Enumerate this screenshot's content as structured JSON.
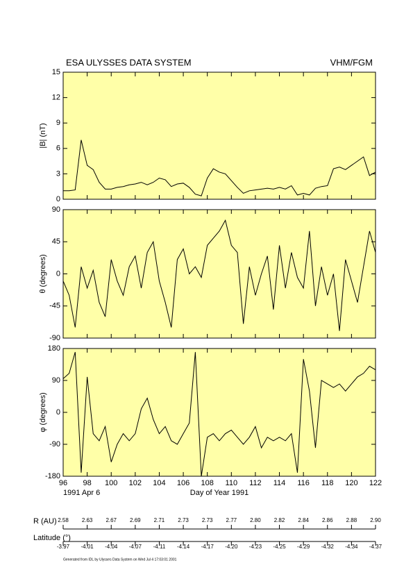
{
  "header": {
    "title": "ESA ULYSSES DATA SYSTEM",
    "instrument": "VHM/FGM"
  },
  "chart_data": [
    {
      "type": "line",
      "y_label": "|B| (nT)",
      "ylim": [
        0,
        15
      ],
      "yticks": [
        0,
        3,
        6,
        9,
        12,
        15
      ],
      "xlim": [
        96,
        122
      ],
      "color": "#000000",
      "x": [
        96,
        96.5,
        97,
        97.5,
        98,
        98.5,
        99,
        99.5,
        100,
        100.5,
        101,
        101.5,
        102,
        102.5,
        103,
        103.5,
        104,
        104.5,
        105,
        105.5,
        106,
        106.5,
        107,
        107.5,
        108,
        108.5,
        109,
        109.5,
        110,
        110.5,
        111,
        111.5,
        112,
        112.5,
        113,
        113.5,
        114,
        114.5,
        115,
        115.5,
        116,
        116.5,
        117,
        117.5,
        118,
        118.5,
        119,
        119.5,
        120,
        120.5,
        121,
        121.5,
        122
      ],
      "values": [
        1.0,
        1.0,
        1.1,
        7.0,
        4.0,
        3.5,
        2.0,
        1.2,
        1.2,
        1.4,
        1.5,
        1.7,
        1.8,
        2.0,
        1.7,
        2.0,
        2.5,
        2.3,
        1.5,
        1.8,
        1.9,
        1.4,
        0.6,
        0.4,
        2.5,
        3.6,
        3.2,
        3.0,
        2.2,
        1.4,
        0.7,
        1.0,
        1.1,
        1.2,
        1.3,
        1.2,
        1.4,
        1.2,
        1.6,
        0.5,
        0.7,
        0.5,
        1.3,
        1.5,
        1.6,
        3.6,
        3.8,
        3.5,
        4.0,
        4.5,
        5.0,
        2.8,
        3.2
      ]
    },
    {
      "type": "line",
      "y_label": "θ (degrees)",
      "ylim": [
        -90,
        90
      ],
      "yticks": [
        -90,
        -45,
        0,
        45,
        90
      ],
      "xlim": [
        96,
        122
      ],
      "color": "#000000",
      "x": [
        96,
        96.5,
        97,
        97.5,
        98,
        98.5,
        99,
        99.5,
        100,
        100.5,
        101,
        101.5,
        102,
        102.5,
        103,
        103.5,
        104,
        104.5,
        105,
        105.5,
        106,
        106.5,
        107,
        107.5,
        108,
        108.5,
        109,
        109.5,
        110,
        110.5,
        111,
        111.5,
        112,
        112.5,
        113,
        113.5,
        114,
        114.5,
        115,
        115.5,
        116,
        116.5,
        117,
        117.5,
        118,
        118.5,
        119,
        119.5,
        120,
        120.5,
        121,
        121.5,
        122
      ],
      "values": [
        -10,
        -30,
        -75,
        10,
        -20,
        5,
        -40,
        -60,
        20,
        -10,
        -30,
        10,
        25,
        -20,
        30,
        45,
        -10,
        -40,
        -75,
        20,
        35,
        0,
        10,
        -5,
        40,
        50,
        60,
        75,
        40,
        30,
        -70,
        10,
        -30,
        0,
        25,
        -50,
        40,
        -20,
        30,
        -5,
        -20,
        60,
        -45,
        10,
        -30,
        0,
        -80,
        20,
        -10,
        -40,
        10,
        60,
        30
      ]
    },
    {
      "type": "line",
      "y_label": "φ (degrees)",
      "ylim": [
        -180,
        180
      ],
      "yticks": [
        -180,
        -90,
        0,
        90,
        180
      ],
      "xlim": [
        96,
        122
      ],
      "color": "#000000",
      "x": [
        96,
        96.5,
        97,
        97.5,
        98,
        98.5,
        99,
        99.5,
        100,
        100.5,
        101,
        101.5,
        102,
        102.5,
        103,
        103.5,
        104,
        104.5,
        105,
        105.5,
        106,
        106.5,
        107,
        107.5,
        108,
        108.5,
        109,
        109.5,
        110,
        110.5,
        111,
        111.5,
        112,
        112.5,
        113,
        113.5,
        114,
        114.5,
        115,
        115.5,
        116,
        116.5,
        117,
        117.5,
        118,
        118.5,
        119,
        119.5,
        120,
        120.5,
        121,
        121.5,
        122
      ],
      "values": [
        95,
        110,
        170,
        -170,
        100,
        -60,
        -80,
        -40,
        -140,
        -90,
        -60,
        -80,
        -60,
        10,
        40,
        -20,
        -60,
        -40,
        -80,
        -90,
        -60,
        -30,
        170,
        -180,
        -70,
        -60,
        -80,
        -60,
        -50,
        -70,
        -90,
        -70,
        -40,
        -100,
        -70,
        -80,
        -70,
        -80,
        -60,
        -170,
        150,
        60,
        -100,
        90,
        80,
        70,
        80,
        60,
        80,
        100,
        110,
        130,
        120
      ],
      "xticks": [
        96,
        98,
        100,
        102,
        104,
        106,
        108,
        110,
        112,
        114,
        116,
        118,
        120,
        122
      ],
      "x_label": "Day of Year 1991",
      "x_start_label": "1991 Apr  6"
    }
  ],
  "ephemeris": {
    "r_label": "R (AU)",
    "r": [
      "2.58",
      "2.63",
      "2.67",
      "2.69",
      "2.71",
      "2.73",
      "2.73",
      "2.77",
      "2.80",
      "2.82",
      "2.84",
      "2.86",
      "2.88",
      "2.90"
    ],
    "lat_label": "Latitude (°)",
    "lat": [
      "-3.97",
      "-4.01",
      "-4.04",
      "-4.07",
      "-4.11",
      "-4.14",
      "-4.17",
      "-4.20",
      "-4.23",
      "-4.25",
      "-4.29",
      "-4.32",
      "-4.34",
      "-4.37"
    ]
  },
  "footer": "Generated from IDL by Ulysses Data System on Wed Jul  4 17:03:01 2001"
}
